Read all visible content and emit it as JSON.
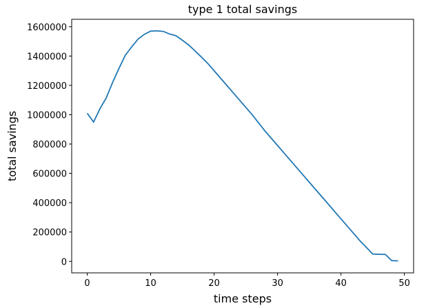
{
  "chart_data": {
    "type": "line",
    "title": "type 1 total savings",
    "x_label": "time steps",
    "y_label": "total savings",
    "x": [
      0,
      1,
      2,
      3,
      4,
      5,
      6,
      7,
      8,
      9,
      10,
      11,
      12,
      13,
      14,
      15,
      16,
      17,
      18,
      19,
      20,
      21,
      22,
      23,
      24,
      25,
      26,
      27,
      28,
      29,
      30,
      31,
      32,
      33,
      34,
      35,
      36,
      37,
      38,
      39,
      40,
      41,
      42,
      43,
      44,
      45,
      46,
      47,
      48,
      49
    ],
    "series": [
      {
        "name": "type 1",
        "color": "#1f77b4",
        "values": [
          1010000,
          950000,
          1040000,
          1115000,
          1220000,
          1315000,
          1405000,
          1462000,
          1515000,
          1548000,
          1570000,
          1572000,
          1568000,
          1550000,
          1538000,
          1508000,
          1475000,
          1435000,
          1393000,
          1350000,
          1300000,
          1250000,
          1200000,
          1150000,
          1100000,
          1050000,
          1000000,
          945000,
          890000,
          840000,
          790000,
          740000,
          690000,
          640000,
          590000,
          540000,
          490000,
          440000,
          390000,
          340000,
          290000,
          240000,
          190000,
          140000,
          95000,
          50000,
          48000,
          47000,
          5000,
          3000
        ]
      }
    ],
    "xlim": [
      -2.45,
      51.45
    ],
    "xticks": [
      0,
      10,
      20,
      30,
      40,
      50
    ],
    "ylim": [
      -78600,
      1650600
    ],
    "yticks": [
      0,
      200000,
      400000,
      600000,
      800000,
      1000000,
      1200000,
      1400000,
      1600000
    ]
  }
}
